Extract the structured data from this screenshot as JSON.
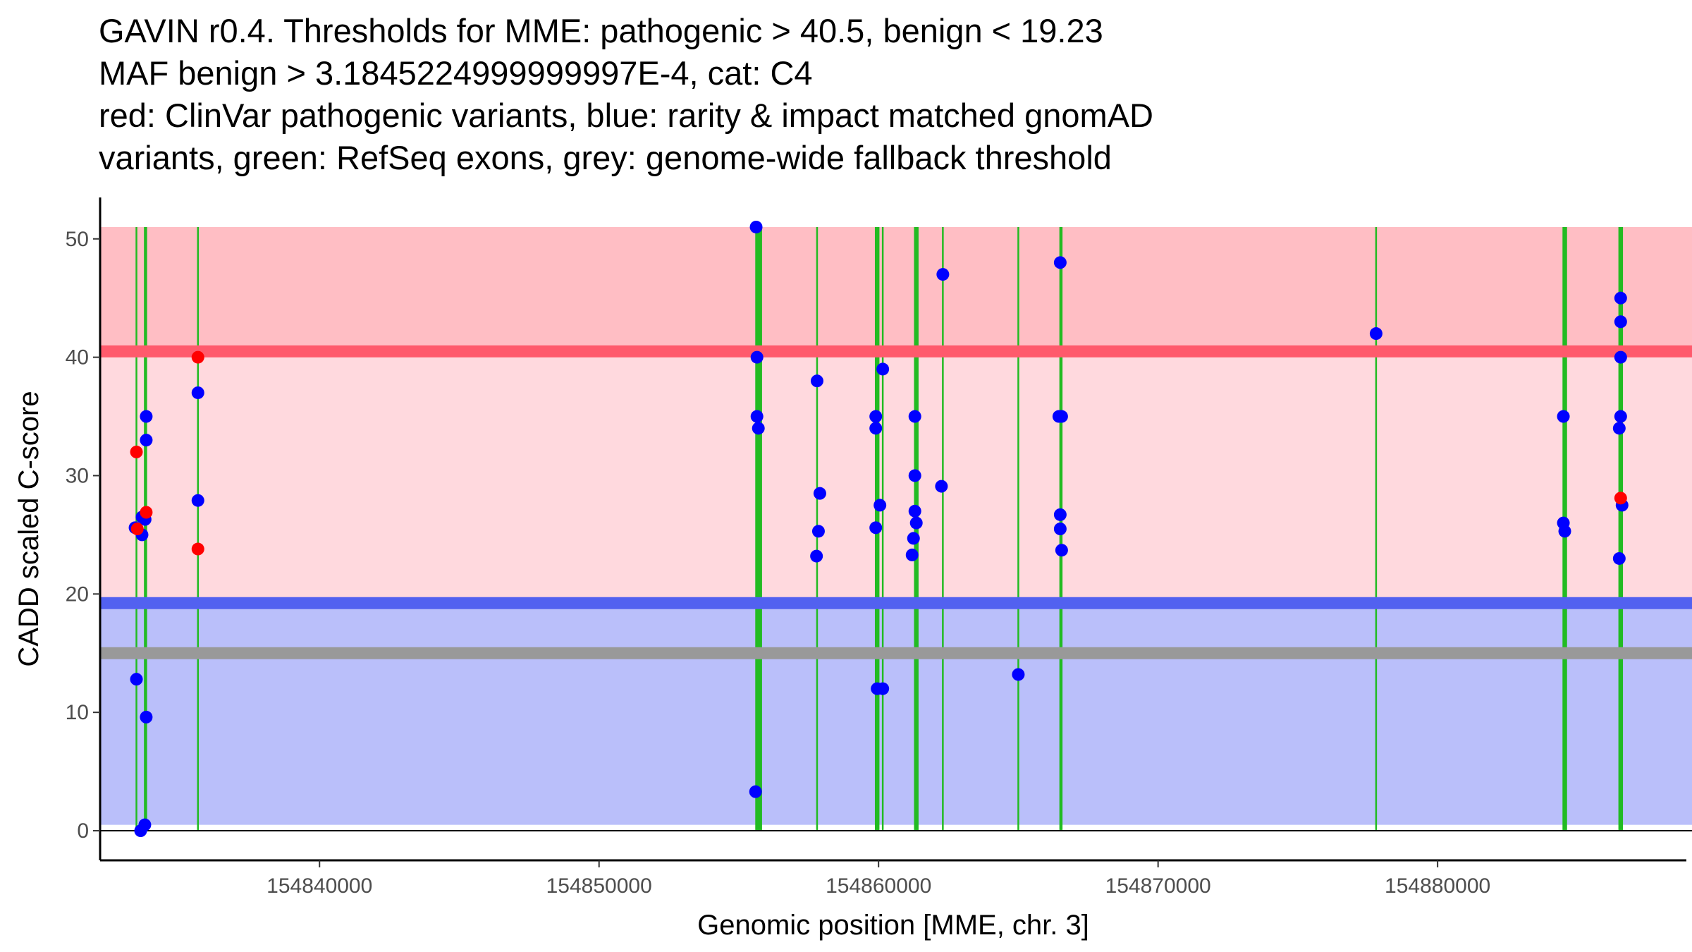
{
  "chart_data": {
    "type": "scatter",
    "title_lines": [
      "GAVIN r0.4. Thresholds for MME: pathogenic > 40.5, benign < 19.23",
      "MAF benign > 3.1845224999999997E-4, cat: C4",
      "red: ClinVar pathogenic variants, blue: rarity & impact matched gnomAD",
      "variants, green: RefSeq exons, grey: genome-wide fallback threshold"
    ],
    "xlabel": "Genomic position [MME, chr. 3]",
    "ylabel": "CADD scaled C-score",
    "xlim": [
      154832150,
      154888900
    ],
    "ylim": [
      -2.5,
      53.5
    ],
    "x_ticks": [
      154840000,
      154850000,
      154860000,
      154870000,
      154880000
    ],
    "x_tick_labels": [
      "154840000",
      "154850000",
      "154860000",
      "154870000",
      "154880000"
    ],
    "y_ticks": [
      0,
      10,
      20,
      30,
      40,
      50
    ],
    "y_tick_labels": [
      "0",
      "10",
      "20",
      "30",
      "40",
      "50"
    ],
    "thresholds": {
      "pathogenic": 40.5,
      "benign": 19.23,
      "fallback": 15.0,
      "band_top": 51,
      "band_bottom": 0.5
    },
    "colors": {
      "pathogenic_band": "#ffd9de",
      "pathogenic_upper_band": "#ffbec4",
      "benign_band": "#babffa",
      "pathogenic_line": "#ff5a6c",
      "benign_line": "#5261f0",
      "fallback_line": "#999999",
      "exon_line": "#22bb22",
      "clinvar_point": "#ff0000",
      "gnomad_point": "#0000ff"
    },
    "exon_positions": [
      154833450,
      154833750,
      154833800,
      154835650,
      154855620,
      154855650,
      154855700,
      154855750,
      154855800,
      154857800,
      154859900,
      154859950,
      154860000,
      154860150,
      154861300,
      154861350,
      154861400,
      154862300,
      154865000,
      154866500,
      154866550,
      154877800,
      154884500,
      154884550,
      154884600,
      154886500,
      154886550,
      154886600
    ],
    "series": [
      {
        "name": "ClinVar pathogenic",
        "color": "#ff0000",
        "points": [
          [
            154833450,
            32
          ],
          [
            154833480,
            25.5
          ],
          [
            154833800,
            26.9
          ],
          [
            154835650,
            40
          ],
          [
            154835650,
            23.8
          ],
          [
            154886550,
            28.1
          ]
        ]
      },
      {
        "name": "gnomAD matched",
        "color": "#0000ff",
        "points": [
          [
            154833400,
            25.6
          ],
          [
            154833450,
            12.8
          ],
          [
            154833650,
            26.5
          ],
          [
            154833650,
            25
          ],
          [
            154833600,
            0
          ],
          [
            154833760,
            26.3
          ],
          [
            154833800,
            35
          ],
          [
            154833800,
            33
          ],
          [
            154833800,
            9.6
          ],
          [
            154833750,
            0.5
          ],
          [
            154835650,
            37
          ],
          [
            154835650,
            27.9
          ],
          [
            154855620,
            51
          ],
          [
            154855650,
            40
          ],
          [
            154855650,
            35
          ],
          [
            154855700,
            34
          ],
          [
            154855600,
            3.3
          ],
          [
            154857800,
            38
          ],
          [
            154857900,
            28.5
          ],
          [
            154857850,
            25.3
          ],
          [
            154857780,
            23.2
          ],
          [
            154859900,
            35
          ],
          [
            154859900,
            34
          ],
          [
            154859900,
            25.6
          ],
          [
            154859950,
            12
          ],
          [
            154860150,
            12
          ],
          [
            154860150,
            39
          ],
          [
            154860050,
            27.5
          ],
          [
            154861300,
            35
          ],
          [
            154861300,
            30
          ],
          [
            154861300,
            27
          ],
          [
            154861350,
            26
          ],
          [
            154861250,
            24.7
          ],
          [
            154861200,
            23.3
          ],
          [
            154862300,
            47
          ],
          [
            154862250,
            29.1
          ],
          [
            154865000,
            13.2
          ],
          [
            154866500,
            48
          ],
          [
            154866450,
            35
          ],
          [
            154866550,
            35
          ],
          [
            154866500,
            26.7
          ],
          [
            154866500,
            25.5
          ],
          [
            154866550,
            23.7
          ],
          [
            154877800,
            42
          ],
          [
            154884500,
            35
          ],
          [
            154884500,
            26
          ],
          [
            154884550,
            25.3
          ],
          [
            154886550,
            45
          ],
          [
            154886550,
            43
          ],
          [
            154886550,
            40
          ],
          [
            154886550,
            35
          ],
          [
            154886500,
            34
          ],
          [
            154886600,
            27.5
          ],
          [
            154886500,
            23
          ]
        ]
      }
    ]
  }
}
